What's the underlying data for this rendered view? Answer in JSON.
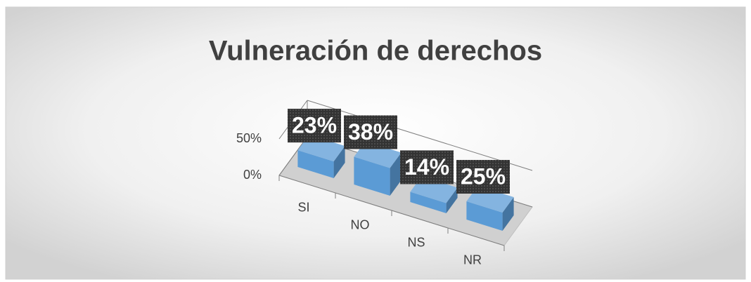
{
  "chart_data": {
    "type": "bar3d",
    "title": "Vulneración de derechos",
    "categories": [
      "SI",
      "NO",
      "NS",
      "NR"
    ],
    "values": [
      23,
      38,
      14,
      25
    ],
    "value_labels": [
      "23%",
      "38%",
      "14%",
      "25%"
    ],
    "color": "#5b9bd5",
    "ylim": [
      0,
      50
    ],
    "yticks": [
      {
        "value": 0,
        "label": "0%"
      },
      {
        "value": 50,
        "label": "50%"
      }
    ]
  }
}
